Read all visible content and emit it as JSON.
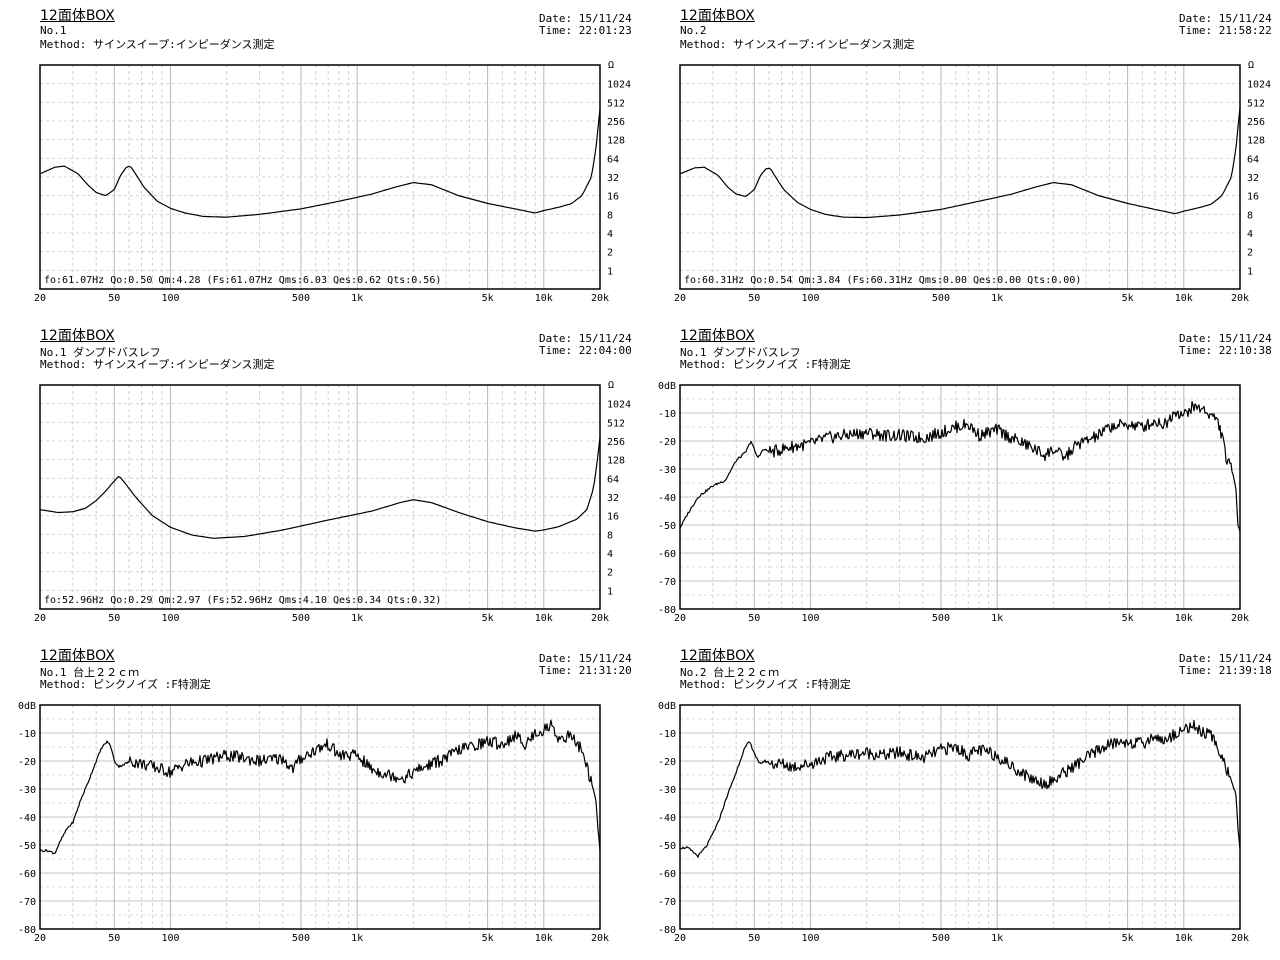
{
  "panels": [
    {
      "title": "12面体BOX",
      "line1": "No.1",
      "line2": "Method:  サインスイープ:インピーダンス測定",
      "date": "Date: 15/11/24",
      "time": "Time: 22:01:23",
      "params": "fo:61.07Hz  Qo:0.50 Qm:4.28  (Fs:61.07Hz  Qms:6.03 Qes:0.62 Qts:0.56)"
    },
    {
      "title": "12面体BOX",
      "line1": "No.2",
      "line2": "Method:  サインスイープ:インピーダンス測定",
      "date": "Date: 15/11/24",
      "time": "Time: 21:58:22",
      "params": "fo:60.31Hz  Qo:0.54 Qm:3.84  (Fs:60.31Hz  Qms:0.00 Qes:0.00 Qts:0.00)"
    },
    {
      "title": "12面体BOX",
      "line1": "No.1 ダンプドバスレフ",
      "line2": "Method:  サインスイープ:インピーダンス測定",
      "date": "Date: 15/11/24",
      "time": "Time: 22:04:00",
      "params": "fo:52.96Hz  Qo:0.29 Qm:2.97  (Fs:52.96Hz  Qms:4.10 Qes:0.34 Qts:0.32)"
    },
    {
      "title": "12面体BOX",
      "line1": "No.1 ダンプドバスレフ",
      "line2": "Method:  ピンクノイズ  :F特測定",
      "date": "Date: 15/11/24",
      "time": "Time: 22:10:38",
      "params": ""
    },
    {
      "title": "12面体BOX",
      "line1": "No.1 台上２２ｃｍ",
      "line2": "Method:  ピンクノイズ  :F特測定",
      "date": "Date: 15/11/24",
      "time": "Time: 21:31:20",
      "params": ""
    },
    {
      "title": "12面体BOX",
      "line1": "No.2 台上２２ｃｍ",
      "line2": "Method:  ピンクノイズ  :F特測定",
      "date": "Date: 15/11/24",
      "time": "Time: 21:39:18",
      "params": ""
    }
  ],
  "chart_data": [
    {
      "type": "line",
      "title": "12面体BOX",
      "x_scale": "log",
      "xlim": [
        20,
        20000
      ],
      "x_ticks": [
        "20",
        "50",
        "100",
        "500",
        "1k",
        "5k",
        "10k",
        "20k"
      ],
      "y_scale": "log2",
      "ylim": [
        0.5,
        2048
      ],
      "y_unit": "Ω",
      "y_ticks": [
        "1",
        "2",
        "4",
        "8",
        "16",
        "32",
        "64",
        "128",
        "256",
        "512",
        "1024"
      ],
      "grid": true,
      "series": [
        {
          "x": [
            20,
            24,
            27,
            32,
            36,
            40,
            45,
            50,
            54,
            58,
            61,
            65,
            72,
            85,
            100,
            120,
            150,
            200,
            300,
            500,
            800,
            1200,
            1600,
            2000,
            2500,
            3500,
            5000,
            7000,
            9000,
            10000,
            12000,
            14000,
            16000,
            18000,
            19000,
            19700,
            20000
          ],
          "y": [
            36,
            46,
            48,
            36,
            24,
            18,
            16,
            20,
            34,
            46,
            48,
            36,
            22,
            13,
            10,
            8.4,
            7.4,
            7.2,
            8,
            9.8,
            13,
            17,
            22,
            26,
            24,
            16,
            12,
            9.8,
            8.4,
            9.2,
            10.4,
            11.8,
            16,
            32,
            90,
            260,
            400
          ]
        }
      ]
    },
    {
      "type": "line",
      "title": "12面体BOX",
      "x_scale": "log",
      "xlim": [
        20,
        20000
      ],
      "x_ticks": [
        "20",
        "50",
        "100",
        "500",
        "1k",
        "5k",
        "10k",
        "20k"
      ],
      "y_scale": "log2",
      "ylim": [
        0.5,
        2048
      ],
      "y_unit": "Ω",
      "y_ticks": [
        "1",
        "2",
        "4",
        "8",
        "16",
        "32",
        "64",
        "128",
        "256",
        "512",
        "1024"
      ],
      "grid": true,
      "series": [
        {
          "x": [
            20,
            24,
            27,
            32,
            36,
            40,
            45,
            50,
            54,
            58,
            61,
            65,
            72,
            85,
            100,
            120,
            150,
            200,
            300,
            500,
            800,
            1200,
            1600,
            2000,
            2500,
            3500,
            5000,
            7000,
            9000,
            10000,
            12000,
            14000,
            16000,
            18000,
            19000,
            19700,
            20000
          ],
          "y": [
            36,
            45,
            46,
            34,
            22,
            17,
            15.5,
            20,
            34,
            44,
            44,
            32,
            20,
            12.5,
            9.6,
            8,
            7.2,
            7.1,
            7.8,
            9.6,
            13,
            17,
            22,
            26,
            24,
            16,
            12,
            9.6,
            8.2,
            9,
            10.2,
            11.6,
            16,
            32,
            90,
            270,
            420
          ]
        }
      ]
    },
    {
      "type": "line",
      "title": "12面体BOX",
      "x_scale": "log",
      "xlim": [
        20,
        20000
      ],
      "x_ticks": [
        "20",
        "50",
        "100",
        "500",
        "1k",
        "5k",
        "10k",
        "20k"
      ],
      "y_scale": "log2",
      "ylim": [
        0.5,
        2048
      ],
      "y_unit": "Ω",
      "y_ticks": [
        "1",
        "2",
        "4",
        "8",
        "16",
        "32",
        "64",
        "128",
        "256",
        "512",
        "1024"
      ],
      "grid": true,
      "series": [
        {
          "x": [
            20,
            25,
            30,
            35,
            40,
            45,
            50,
            53,
            57,
            65,
            80,
            100,
            130,
            170,
            250,
            400,
            700,
            1200,
            1700,
            2000,
            2500,
            3500,
            5000,
            7000,
            9000,
            10000,
            12000,
            15000,
            17000,
            18500,
            19500,
            20000
          ],
          "y": [
            20,
            18,
            18.5,
            21,
            28,
            40,
            58,
            70,
            54,
            32,
            16,
            10.4,
            7.8,
            6.9,
            7.4,
            9.4,
            13.6,
            19,
            26,
            29,
            26,
            18,
            12.8,
            10.2,
            9,
            9.4,
            10.6,
            14,
            20,
            45,
            150,
            290
          ]
        }
      ]
    },
    {
      "type": "line",
      "title": "12面体BOX",
      "x_scale": "log",
      "xlim": [
        20,
        20000
      ],
      "x_ticks": [
        "20",
        "50",
        "100",
        "500",
        "1k",
        "5k",
        "10k",
        "20k"
      ],
      "y_unit": "dB",
      "ylim": [
        -80,
        0
      ],
      "y_ticks": [
        "0dB",
        "-10",
        "-20",
        "-30",
        "-40",
        "-50",
        "-60",
        "-70",
        "-80"
      ],
      "grid": true,
      "series": [
        {
          "x": [
            20,
            22,
            25,
            30,
            35,
            40,
            45,
            48,
            52,
            56,
            62,
            70,
            80,
            100,
            120,
            150,
            200,
            250,
            300,
            400,
            500,
            600,
            700,
            800,
            1000,
            1200,
            1500,
            1800,
            2000,
            2300,
            2700,
            3000,
            3500,
            4000,
            5000,
            6000,
            7000,
            8000,
            9000,
            10000,
            11000,
            12000,
            13000,
            14000,
            15000,
            16000,
            17000,
            18000,
            19000,
            19500,
            20000
          ],
          "y": [
            -51,
            -46,
            -40,
            -36,
            -34,
            -27,
            -24,
            -20,
            -26,
            -23,
            -24,
            -23,
            -22,
            -21,
            -19,
            -18,
            -17,
            -18,
            -18,
            -19,
            -17,
            -15,
            -14,
            -18,
            -16,
            -19,
            -22,
            -25,
            -23,
            -26,
            -21,
            -20,
            -18,
            -15,
            -14,
            -15,
            -13,
            -14,
            -9,
            -11,
            -8,
            -8,
            -9,
            -11,
            -12,
            -18,
            -27,
            -30,
            -36,
            -50,
            -52
          ]
        }
      ]
    },
    {
      "type": "line",
      "title": "12面体BOX",
      "x_scale": "log",
      "xlim": [
        20,
        20000
      ],
      "x_ticks": [
        "20",
        "50",
        "100",
        "500",
        "1k",
        "5k",
        "10k",
        "20k"
      ],
      "y_unit": "dB",
      "ylim": [
        -80,
        0
      ],
      "y_ticks": [
        "0dB",
        "-10",
        "-20",
        "-30",
        "-40",
        "-50",
        "-60",
        "-70",
        "-80"
      ],
      "grid": true,
      "series": [
        {
          "x": [
            20,
            22,
            24,
            26,
            28,
            30,
            33,
            36,
            40,
            43,
            46,
            48,
            50,
            53,
            57,
            62,
            70,
            80,
            90,
            100,
            120,
            150,
            200,
            250,
            300,
            400,
            450,
            500,
            600,
            700,
            800,
            1000,
            1200,
            1500,
            1800,
            2000,
            2500,
            3000,
            3500,
            4000,
            5000,
            6000,
            7000,
            8000,
            9000,
            10000,
            11000,
            12000,
            14000,
            16000,
            17000,
            18000,
            19000,
            19500,
            20000
          ],
          "y": [
            -52,
            -52,
            -53,
            -48,
            -44,
            -42,
            -34,
            -28,
            -20,
            -15,
            -13,
            -15,
            -20,
            -22,
            -21,
            -20,
            -21,
            -22,
            -23,
            -24,
            -21,
            -20,
            -18,
            -19,
            -20,
            -19,
            -23,
            -19,
            -16,
            -14,
            -18,
            -18,
            -23,
            -25,
            -26,
            -24,
            -21,
            -19,
            -16,
            -15,
            -13,
            -14,
            -11,
            -14,
            -10,
            -9,
            -7,
            -12,
            -11,
            -16,
            -22,
            -28,
            -34,
            -44,
            -52
          ]
        }
      ]
    },
    {
      "type": "line",
      "title": "12面体BOX",
      "x_scale": "log",
      "xlim": [
        20,
        20000
      ],
      "x_ticks": [
        "20",
        "50",
        "100",
        "500",
        "1k",
        "5k",
        "10k",
        "20k"
      ],
      "y_unit": "dB",
      "ylim": [
        -80,
        0
      ],
      "y_ticks": [
        "0dB",
        "-10",
        "-20",
        "-30",
        "-40",
        "-50",
        "-60",
        "-70",
        "-80"
      ],
      "grid": true,
      "series": [
        {
          "x": [
            20,
            22,
            25,
            28,
            32,
            36,
            40,
            44,
            47,
            50,
            53,
            57,
            62,
            70,
            80,
            100,
            120,
            150,
            200,
            250,
            300,
            400,
            500,
            600,
            700,
            800,
            1000,
            1200,
            1500,
            1800,
            2000,
            2300,
            2700,
            3000,
            3500,
            4000,
            5000,
            6000,
            7000,
            8000,
            9000,
            10000,
            11000,
            12000,
            14000,
            16000,
            17000,
            18000,
            19000,
            19500,
            20000
          ],
          "y": [
            -51,
            -51,
            -54,
            -50,
            -42,
            -32,
            -24,
            -16,
            -13,
            -17,
            -21,
            -20,
            -21,
            -21,
            -22,
            -21,
            -19,
            -18,
            -17,
            -18,
            -17,
            -19,
            -16,
            -15,
            -18,
            -16,
            -18,
            -22,
            -26,
            -28,
            -27,
            -24,
            -21,
            -19,
            -16,
            -14,
            -13,
            -14,
            -11,
            -13,
            -10,
            -9,
            -7,
            -9,
            -11,
            -18,
            -23,
            -27,
            -32,
            -44,
            -52
          ]
        }
      ]
    }
  ]
}
